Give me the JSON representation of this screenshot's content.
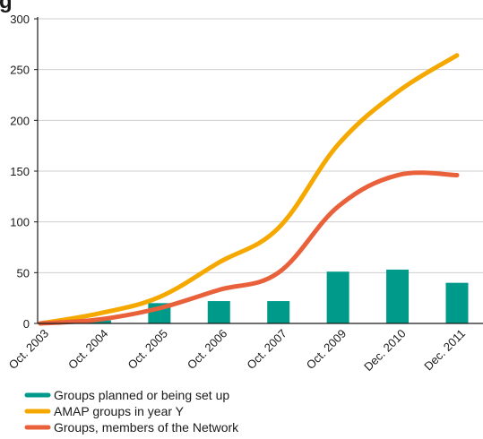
{
  "chart_data": {
    "type": "bar+line",
    "title_fragment": "g",
    "categories": [
      "Oct. 2003",
      "Oct. 2004",
      "Oct. 2005",
      "Oct. 2006",
      "Oct. 2007",
      "Oct. 2009",
      "Dec. 2010",
      "Dec. 2011"
    ],
    "ylim": [
      0,
      300
    ],
    "yticks": [
      0,
      50,
      100,
      150,
      200,
      250,
      300
    ],
    "grid": true,
    "legend_placement": "bottom-left",
    "series": [
      {
        "name": "Groups planned or being set up",
        "type": "bar",
        "color": "#009a8a",
        "values": [
          0,
          3,
          20,
          22,
          22,
          51,
          53,
          40
        ]
      },
      {
        "name": "AMAP groups in year Y",
        "type": "line",
        "color": "#f5a800",
        "values": [
          0,
          10,
          26,
          60,
          94,
          176,
          228,
          264
        ]
      },
      {
        "name": "Groups, members of the Network",
        "type": "line",
        "color": "#e8613a",
        "values": [
          0,
          4,
          15,
          33,
          50,
          115,
          146,
          146
        ]
      }
    ]
  }
}
